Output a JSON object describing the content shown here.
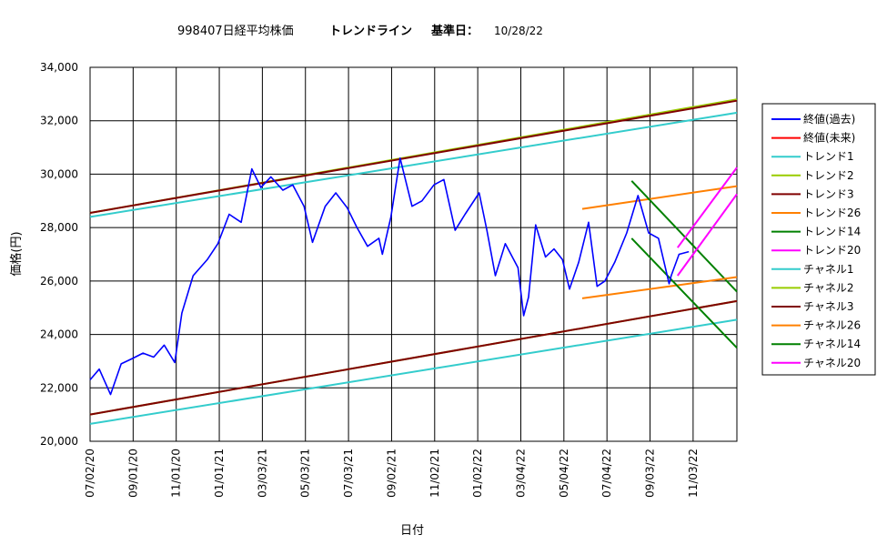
{
  "chart_data": {
    "type": "line",
    "title_code": "998407日経平均株価",
    "title_main": "トレンドライン",
    "title_base_label": "基準日：",
    "title_base_date": "10/28/22",
    "xlabel": "日付",
    "ylabel": "価格(円)",
    "ylim": [
      20000,
      34000
    ],
    "xlim": [
      "2020-07-02",
      "2023-01-04"
    ],
    "yticks": [
      20000,
      22000,
      24000,
      26000,
      28000,
      30000,
      32000,
      34000
    ],
    "ytick_labels": [
      "20,000",
      "22,000",
      "24,000",
      "26,000",
      "28,000",
      "30,000",
      "32,000",
      "34,000"
    ],
    "xticks": [
      "2020-07-02",
      "2020-09-01",
      "2020-11-01",
      "2021-01-01",
      "2021-03-03",
      "2021-05-03",
      "2021-07-03",
      "2021-09-02",
      "2021-11-02",
      "2022-01-02",
      "2022-03-04",
      "2022-05-04",
      "2022-07-04",
      "2022-09-03",
      "2022-11-03"
    ],
    "xtick_labels": [
      "07/02/20",
      "09/01/20",
      "11/01/20",
      "01/01/21",
      "03/03/21",
      "05/03/21",
      "07/03/21",
      "09/02/21",
      "11/02/21",
      "01/02/22",
      "03/04/22",
      "05/04/22",
      "07/04/22",
      "09/03/22",
      "11/03/22"
    ],
    "grid": true,
    "legend_position": "right",
    "series": [
      {
        "name": "終値(過去)",
        "color": "#0000ff",
        "x": [
          "2020-07-02",
          "2020-07-15",
          "2020-07-31",
          "2020-08-15",
          "2020-08-31",
          "2020-09-15",
          "2020-09-30",
          "2020-10-15",
          "2020-10-30",
          "2020-11-09",
          "2020-11-25",
          "2020-12-15",
          "2020-12-30",
          "2021-01-15",
          "2021-02-01",
          "2021-02-16",
          "2021-03-01",
          "2021-03-15",
          "2021-04-01",
          "2021-04-15",
          "2021-05-01",
          "2021-05-13",
          "2021-05-31",
          "2021-06-15",
          "2021-07-01",
          "2021-07-15",
          "2021-07-30",
          "2021-08-15",
          "2021-08-20",
          "2021-09-01",
          "2021-09-14",
          "2021-10-01",
          "2021-10-15",
          "2021-11-01",
          "2021-11-15",
          "2021-12-01",
          "2021-12-15",
          "2022-01-04",
          "2022-01-15",
          "2022-01-27",
          "2022-02-10",
          "2022-02-28",
          "2022-03-08",
          "2022-03-15",
          "2022-03-25",
          "2022-04-08",
          "2022-04-20",
          "2022-05-02",
          "2022-05-12",
          "2022-05-25",
          "2022-06-08",
          "2022-06-20",
          "2022-07-01",
          "2022-07-15",
          "2022-08-01",
          "2022-08-17",
          "2022-09-01",
          "2022-09-15",
          "2022-09-30",
          "2022-10-03",
          "2022-10-14",
          "2022-10-28"
        ],
        "y": [
          22300,
          22700,
          21750,
          22900,
          23100,
          23300,
          23150,
          23600,
          22950,
          24800,
          26200,
          26800,
          27400,
          28500,
          28200,
          30200,
          29500,
          29900,
          29400,
          29600,
          28800,
          27450,
          28800,
          29300,
          28750,
          28000,
          27300,
          27600,
          27000,
          28400,
          30600,
          28800,
          29000,
          29600,
          29800,
          27900,
          28500,
          29300,
          27900,
          26200,
          27400,
          26500,
          24700,
          25400,
          28100,
          26900,
          27200,
          26800,
          25700,
          26700,
          28200,
          25800,
          26000,
          26700,
          27800,
          29200,
          27800,
          27600,
          25900,
          26200,
          27000,
          27100
        ]
      },
      {
        "name": "終値(未来)",
        "color": "#ff0000",
        "x": [],
        "y": []
      },
      {
        "name": "トレンド1",
        "color": "#33cccc",
        "x": [
          "2020-07-02",
          "2023-01-04"
        ],
        "y": [
          28400,
          32300
        ]
      },
      {
        "name": "トレンド2",
        "color": "#99cc00",
        "x": [
          "2020-07-02",
          "2023-01-04"
        ],
        "y": [
          28550,
          32800
        ]
      },
      {
        "name": "トレンド3",
        "color": "#800000",
        "x": [
          "2020-07-02",
          "2023-01-04"
        ],
        "y": [
          28550,
          32750
        ]
      },
      {
        "name": "トレンド26",
        "color": "#ff8000",
        "x": [
          "2022-05-30",
          "2023-01-04"
        ],
        "y": [
          28700,
          29550
        ]
      },
      {
        "name": "トレンド14",
        "color": "#008000",
        "x": [
          "2022-08-08",
          "2023-01-04"
        ],
        "y": [
          29750,
          25600
        ]
      },
      {
        "name": "トレンド20",
        "color": "#ff00ff",
        "x": [
          "2022-10-12",
          "2023-01-04"
        ],
        "y": [
          27250,
          30250
        ]
      },
      {
        "name": "チャネル1",
        "color": "#33cccc",
        "x": [
          "2020-07-02",
          "2023-01-04"
        ],
        "y": [
          20650,
          24550
        ]
      },
      {
        "name": "チャネル2",
        "color": "#99cc00",
        "x": [
          "2020-07-02",
          "2023-01-04"
        ],
        "y": [
          21000,
          25250
        ]
      },
      {
        "name": "チャネル3",
        "color": "#800000",
        "x": [
          "2020-07-02",
          "2023-01-04"
        ],
        "y": [
          21000,
          25250
        ]
      },
      {
        "name": "チャネル26",
        "color": "#ff8000",
        "x": [
          "2022-05-30",
          "2023-01-04"
        ],
        "y": [
          25350,
          26150
        ]
      },
      {
        "name": "チャネル14",
        "color": "#008000",
        "x": [
          "2022-08-08",
          "2023-01-04"
        ],
        "y": [
          27600,
          23500
        ]
      },
      {
        "name": "チャネル20",
        "color": "#ff00ff",
        "x": [
          "2022-10-12",
          "2023-01-04"
        ],
        "y": [
          26200,
          29250
        ]
      }
    ]
  }
}
